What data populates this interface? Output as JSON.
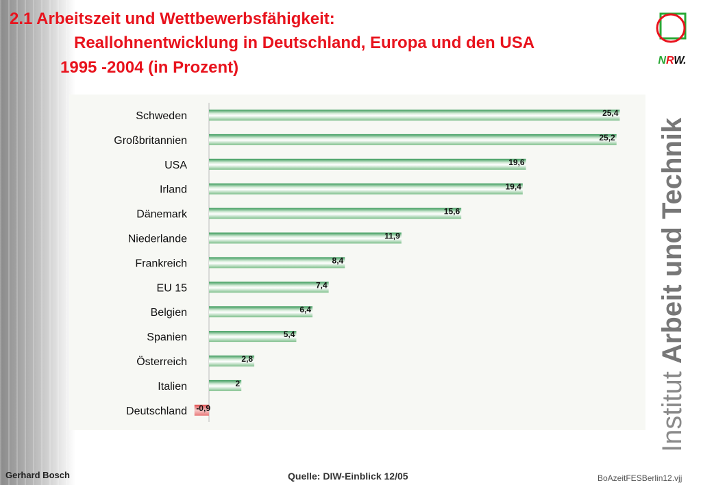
{
  "title": {
    "line1": "2.1 Arbeitszeit und Wettbewerbsfähigkeit:",
    "line2": "Reallohnentwicklung in Deutschland, Europa und den USA",
    "line3": "1995 -2004 (in Prozent)"
  },
  "logo": {
    "n": "N",
    "r": "R",
    "w": "W",
    "dot": "."
  },
  "sidebar": {
    "institut": "Institut",
    "rest": "Arbeit und Technik"
  },
  "footer": {
    "author": "Gerhard Bosch",
    "source": "Quelle: DIW-Einblick 12/05",
    "file": "BoAzeitFESBerlin12.vjj"
  },
  "colors": {
    "title": "#e8131d",
    "bar_positive": "#3a9a5a",
    "bar_negative": "#e87a7a"
  },
  "chart_data": {
    "type": "bar",
    "orientation": "horizontal",
    "categories": [
      "Schweden",
      "Großbritannien",
      "USA",
      "Irland",
      "Dänemark",
      "Niederlande",
      "Frankreich",
      "EU 15",
      "Belgien",
      "Spanien",
      "Österreich",
      "Italien",
      "Deutschland"
    ],
    "values": [
      25.4,
      25.2,
      19.6,
      19.4,
      15.6,
      11.9,
      8.4,
      7.4,
      6.4,
      5.4,
      2.8,
      2,
      -0.9
    ],
    "labels": [
      "25,4",
      "25,2",
      "19,6",
      "19,4",
      "15,6",
      "11,9",
      "8,4",
      "7,4",
      "6,4",
      "5,4",
      "2,8",
      "2",
      "-0,9"
    ],
    "xlim": [
      -0.9,
      25.4
    ],
    "grid": false
  }
}
